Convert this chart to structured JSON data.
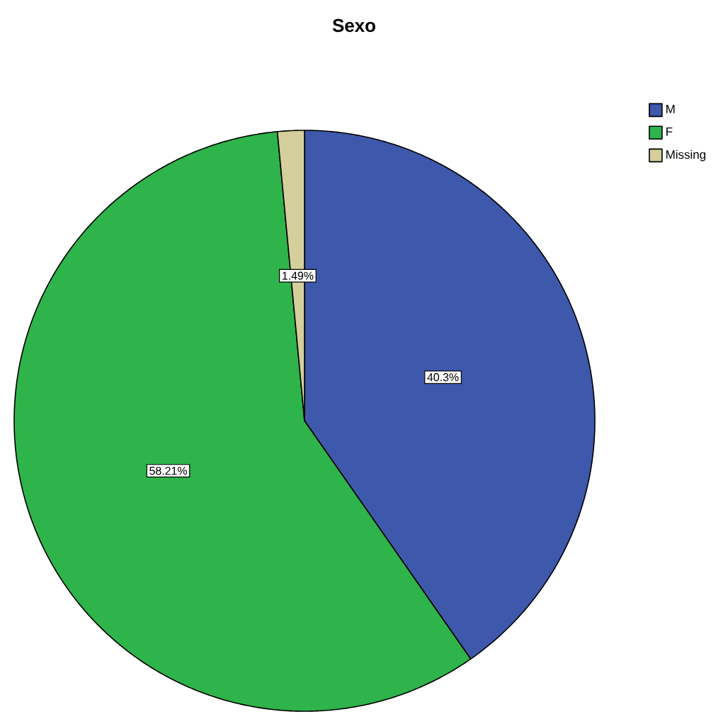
{
  "chart_data": {
    "type": "pie",
    "title": "Sexo",
    "categories": [
      "M",
      "F",
      "Missing"
    ],
    "values": [
      40.3,
      58.21,
      1.49
    ],
    "colors": [
      "#3e58ac",
      "#2eb44a",
      "#d4cf9b"
    ],
    "value_labels": [
      "40.3%",
      "58.21%",
      "1.49%"
    ],
    "legend": "top right"
  }
}
